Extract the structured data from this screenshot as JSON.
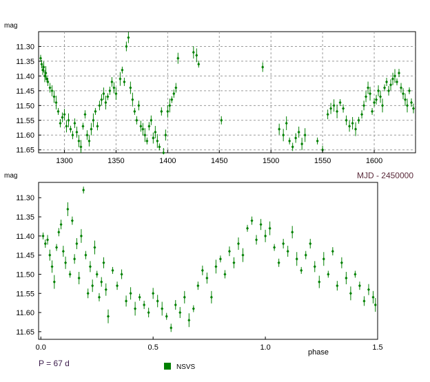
{
  "chart_data": [
    {
      "type": "scatter",
      "panel": "time",
      "y_unit_label": "mag",
      "x_axis_label": "MJD - 2450000",
      "xlim": [
        1275,
        1640
      ],
      "ylim": [
        11.66,
        11.25
      ],
      "y_reversed": true,
      "xticks": [
        1300,
        1350,
        1400,
        1450,
        1500,
        1550,
        1600
      ],
      "yticks": [
        11.3,
        11.35,
        11.4,
        11.45,
        11.5,
        11.55,
        11.6,
        11.65
      ],
      "xtick_labels": [
        "1300",
        "1350",
        "1400",
        "1450",
        "1500",
        "1550",
        "1600"
      ],
      "ytick_labels": [
        "11.30",
        "11.35",
        "11.40",
        "11.45",
        "11.50",
        "11.55",
        "11.60",
        "11.65"
      ],
      "grid": true,
      "color": "#008000",
      "series": [
        {
          "name": "NSVS",
          "points": [
            [
              1277,
              11.34
            ],
            [
              1278,
              11.36
            ],
            [
              1279,
              11.38
            ],
            [
              1280,
              11.37
            ],
            [
              1281,
              11.4
            ],
            [
              1282,
              11.39
            ],
            [
              1283,
              11.41
            ],
            [
              1284,
              11.42
            ],
            [
              1286,
              11.44
            ],
            [
              1288,
              11.45
            ],
            [
              1290,
              11.47
            ],
            [
              1292,
              11.49
            ],
            [
              1294,
              11.52
            ],
            [
              1296,
              11.56
            ],
            [
              1298,
              11.54
            ],
            [
              1300,
              11.53
            ],
            [
              1302,
              11.57
            ],
            [
              1304,
              11.55
            ],
            [
              1306,
              11.58
            ],
            [
              1308,
              11.6
            ],
            [
              1310,
              11.56
            ],
            [
              1312,
              11.59
            ],
            [
              1314,
              11.62
            ],
            [
              1316,
              11.64
            ],
            [
              1318,
              11.57
            ],
            [
              1320,
              11.53
            ],
            [
              1322,
              11.6
            ],
            [
              1324,
              11.62
            ],
            [
              1326,
              11.58
            ],
            [
              1328,
              11.55
            ],
            [
              1330,
              11.52
            ],
            [
              1332,
              11.57
            ],
            [
              1334,
              11.5
            ],
            [
              1336,
              11.48
            ],
            [
              1338,
              11.46
            ],
            [
              1340,
              11.49
            ],
            [
              1342,
              11.47
            ],
            [
              1344,
              11.45
            ],
            [
              1346,
              11.42
            ],
            [
              1348,
              11.44
            ],
            [
              1350,
              11.46
            ],
            [
              1354,
              11.41
            ],
            [
              1356,
              11.38
            ],
            [
              1358,
              11.42
            ],
            [
              1360,
              11.3
            ],
            [
              1362,
              11.27
            ],
            [
              1364,
              11.44
            ],
            [
              1366,
              11.48
            ],
            [
              1368,
              11.52
            ],
            [
              1370,
              11.55
            ],
            [
              1372,
              11.5
            ],
            [
              1374,
              11.57
            ],
            [
              1376,
              11.58
            ],
            [
              1378,
              11.6
            ],
            [
              1380,
              11.62
            ],
            [
              1382,
              11.57
            ],
            [
              1384,
              11.55
            ],
            [
              1386,
              11.61
            ],
            [
              1388,
              11.59
            ],
            [
              1390,
              11.62
            ],
            [
              1392,
              11.64
            ],
            [
              1394,
              11.52
            ],
            [
              1396,
              11.66
            ],
            [
              1398,
              11.6
            ],
            [
              1400,
              11.52
            ],
            [
              1402,
              11.5
            ],
            [
              1404,
              11.48
            ],
            [
              1406,
              11.46
            ],
            [
              1408,
              11.44
            ],
            [
              1410,
              11.34
            ],
            [
              1425,
              11.32
            ],
            [
              1428,
              11.33
            ],
            [
              1430,
              11.36
            ],
            [
              1452,
              11.55
            ],
            [
              1492,
              11.37
            ],
            [
              1508,
              11.58
            ],
            [
              1512,
              11.6
            ],
            [
              1515,
              11.56
            ],
            [
              1518,
              11.62
            ],
            [
              1521,
              11.64
            ],
            [
              1524,
              11.61
            ],
            [
              1527,
              11.59
            ],
            [
              1530,
              11.63
            ],
            [
              1533,
              11.6
            ],
            [
              1545,
              11.62
            ],
            [
              1550,
              11.65
            ],
            [
              1555,
              11.53
            ],
            [
              1558,
              11.51
            ],
            [
              1561,
              11.5
            ],
            [
              1564,
              11.52
            ],
            [
              1567,
              11.49
            ],
            [
              1570,
              11.51
            ],
            [
              1573,
              11.55
            ],
            [
              1576,
              11.57
            ],
            [
              1579,
              11.56
            ],
            [
              1582,
              11.58
            ],
            [
              1585,
              11.55
            ],
            [
              1588,
              11.53
            ],
            [
              1590,
              11.5
            ],
            [
              1592,
              11.47
            ],
            [
              1594,
              11.44
            ],
            [
              1596,
              11.46
            ],
            [
              1598,
              11.52
            ],
            [
              1600,
              11.49
            ],
            [
              1602,
              11.48
            ],
            [
              1604,
              11.45
            ],
            [
              1606,
              11.47
            ],
            [
              1608,
              11.5
            ],
            [
              1610,
              11.44
            ],
            [
              1612,
              11.42
            ],
            [
              1614,
              11.45
            ],
            [
              1616,
              11.43
            ],
            [
              1618,
              11.41
            ],
            [
              1620,
              11.4
            ],
            [
              1622,
              11.42
            ],
            [
              1624,
              11.39
            ],
            [
              1626,
              11.44
            ],
            [
              1628,
              11.46
            ],
            [
              1630,
              11.48
            ],
            [
              1632,
              11.5
            ],
            [
              1634,
              11.45
            ],
            [
              1636,
              11.49
            ],
            [
              1638,
              11.51
            ]
          ]
        }
      ]
    },
    {
      "type": "scatter",
      "panel": "phase",
      "y_unit_label": "mag",
      "x_axis_label": "phase",
      "xlim": [
        -0.01,
        1.5
      ],
      "ylim": [
        11.67,
        11.26
      ],
      "y_reversed": true,
      "xticks": [
        0.0,
        0.5,
        1.0,
        1.5
      ],
      "yticks": [
        11.3,
        11.35,
        11.4,
        11.45,
        11.5,
        11.55,
        11.6,
        11.65
      ],
      "xtick_labels": [
        "0.0",
        "0.5",
        "1.0",
        "1.5"
      ],
      "ytick_labels": [
        "11.30",
        "11.35",
        "11.40",
        "11.45",
        "11.50",
        "11.55",
        "11.60",
        "11.65"
      ],
      "grid": false,
      "color": "#008000",
      "period_label": "P = 67 d",
      "legend": {
        "label": "NSVS",
        "placement": "bottom-center"
      },
      "series": [
        {
          "name": "NSVS",
          "points": [
            [
              0.01,
              11.4
            ],
            [
              0.02,
              11.42
            ],
            [
              0.03,
              11.41
            ],
            [
              0.04,
              11.45
            ],
            [
              0.05,
              11.48
            ],
            [
              0.06,
              11.52
            ],
            [
              0.07,
              11.43
            ],
            [
              0.08,
              11.39
            ],
            [
              0.09,
              11.37
            ],
            [
              0.1,
              11.44
            ],
            [
              0.11,
              11.47
            ],
            [
              0.12,
              11.33
            ],
            [
              0.13,
              11.5
            ],
            [
              0.14,
              11.36
            ],
            [
              0.15,
              11.46
            ],
            [
              0.16,
              11.42
            ],
            [
              0.17,
              11.51
            ],
            [
              0.18,
              11.4
            ],
            [
              0.19,
              11.28
            ],
            [
              0.2,
              11.45
            ],
            [
              0.21,
              11.55
            ],
            [
              0.22,
              11.48
            ],
            [
              0.23,
              11.53
            ],
            [
              0.24,
              11.43
            ],
            [
              0.25,
              11.5
            ],
            [
              0.26,
              11.56
            ],
            [
              0.27,
              11.52
            ],
            [
              0.28,
              11.47
            ],
            [
              0.29,
              11.54
            ],
            [
              0.3,
              11.61
            ],
            [
              0.32,
              11.49
            ],
            [
              0.34,
              11.53
            ],
            [
              0.36,
              11.5
            ],
            [
              0.38,
              11.57
            ],
            [
              0.4,
              11.55
            ],
            [
              0.42,
              11.59
            ],
            [
              0.44,
              11.56
            ],
            [
              0.46,
              11.58
            ],
            [
              0.48,
              11.6
            ],
            [
              0.5,
              11.55
            ],
            [
              0.52,
              11.57
            ],
            [
              0.54,
              11.59
            ],
            [
              0.56,
              11.61
            ],
            [
              0.58,
              11.64
            ],
            [
              0.6,
              11.58
            ],
            [
              0.62,
              11.6
            ],
            [
              0.64,
              11.56
            ],
            [
              0.66,
              11.62
            ],
            [
              0.68,
              11.59
            ],
            [
              0.7,
              11.53
            ],
            [
              0.72,
              11.49
            ],
            [
              0.74,
              11.51
            ],
            [
              0.76,
              11.56
            ],
            [
              0.78,
              11.48
            ],
            [
              0.8,
              11.46
            ],
            [
              0.82,
              11.5
            ],
            [
              0.84,
              11.44
            ],
            [
              0.86,
              11.47
            ],
            [
              0.88,
              11.42
            ],
            [
              0.9,
              11.45
            ],
            [
              0.92,
              11.38
            ],
            [
              0.94,
              11.36
            ],
            [
              0.96,
              11.41
            ],
            [
              0.98,
              11.37
            ],
            [
              1.0,
              11.4
            ],
            [
              1.02,
              11.38
            ],
            [
              1.04,
              11.43
            ],
            [
              1.06,
              11.47
            ],
            [
              1.08,
              11.42
            ],
            [
              1.1,
              11.44
            ],
            [
              1.12,
              11.39
            ],
            [
              1.14,
              11.46
            ],
            [
              1.16,
              11.49
            ],
            [
              1.18,
              11.45
            ],
            [
              1.2,
              11.42
            ],
            [
              1.22,
              11.48
            ],
            [
              1.24,
              11.52
            ],
            [
              1.26,
              11.46
            ],
            [
              1.28,
              11.5
            ],
            [
              1.3,
              11.44
            ],
            [
              1.32,
              11.53
            ],
            [
              1.34,
              11.47
            ],
            [
              1.36,
              11.51
            ],
            [
              1.38,
              11.55
            ],
            [
              1.4,
              11.5
            ],
            [
              1.42,
              11.53
            ],
            [
              1.44,
              11.57
            ],
            [
              1.46,
              11.54
            ],
            [
              1.48,
              11.56
            ],
            [
              1.49,
              11.58
            ]
          ]
        }
      ]
    }
  ]
}
